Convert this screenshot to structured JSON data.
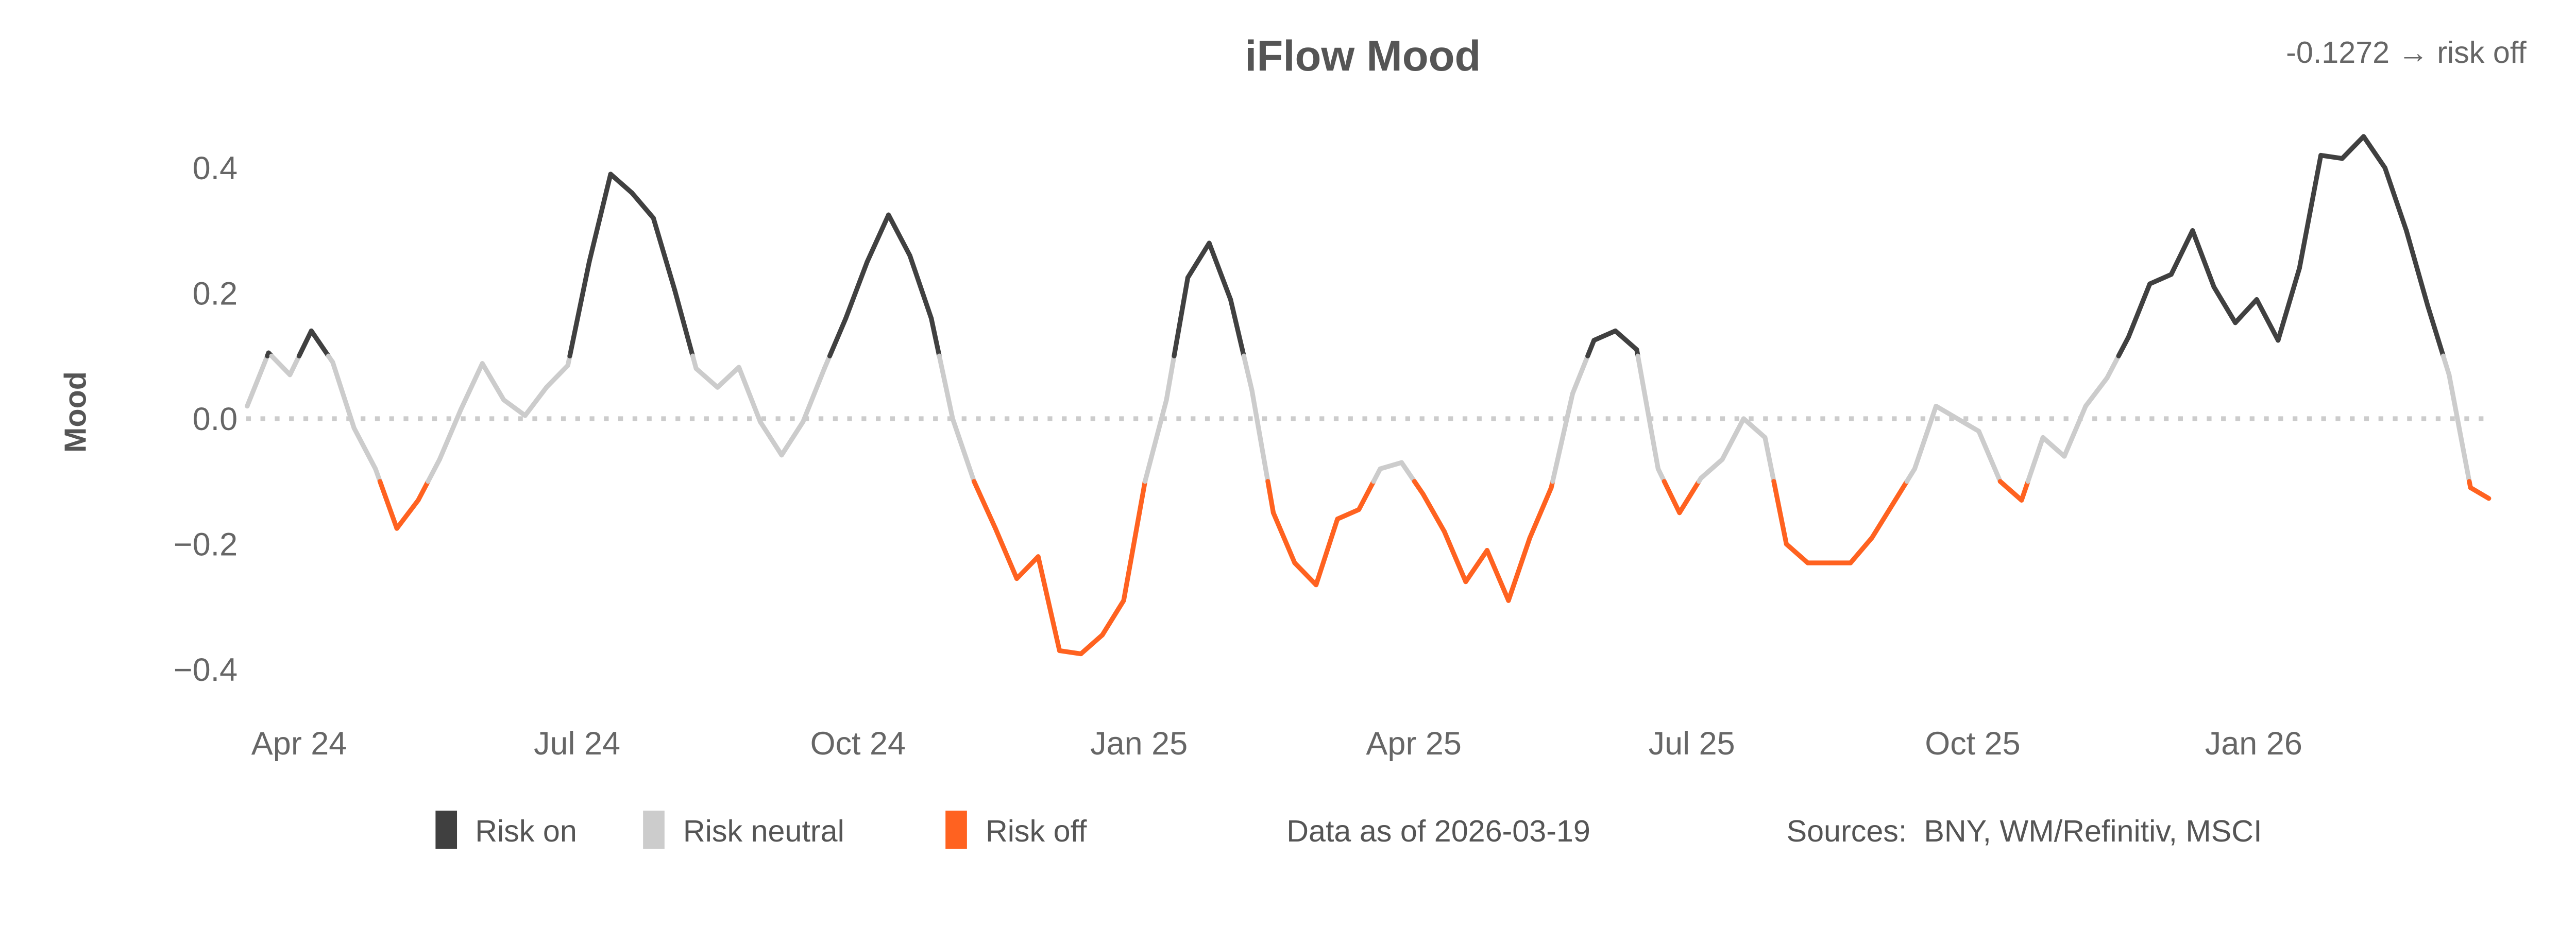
{
  "chart_data": {
    "type": "line",
    "title": "iFlow Mood",
    "annotation": "-0.1272 → risk off",
    "ylabel": "Mood",
    "xlabel": "",
    "ylim": [
      -0.45,
      0.48
    ],
    "yticks": [
      {
        "value": 0.4,
        "label": "0.4"
      },
      {
        "value": 0.2,
        "label": "0.2"
      },
      {
        "value": 0.0,
        "label": "0.0"
      },
      {
        "value": -0.2,
        "label": "−0.2"
      },
      {
        "value": -0.4,
        "label": "−0.4"
      }
    ],
    "xticks": [
      {
        "date": "2024-04-01",
        "label": "Apr 24"
      },
      {
        "date": "2024-07-01",
        "label": "Jul 24"
      },
      {
        "date": "2024-10-01",
        "label": "Oct 24"
      },
      {
        "date": "2025-01-01",
        "label": "Jan 25"
      },
      {
        "date": "2025-04-01",
        "label": "Apr 25"
      },
      {
        "date": "2025-07-01",
        "label": "Jul 25"
      },
      {
        "date": "2025-10-01",
        "label": "Oct 25"
      },
      {
        "date": "2026-01-01",
        "label": "Jan 26"
      }
    ],
    "reference_line": {
      "value": 0.0,
      "style": "dotted"
    },
    "thresholds": {
      "risk_on_above": 0.1,
      "risk_off_below": -0.1
    },
    "colors": {
      "risk_on": "#404040",
      "risk_neutral": "#cccccc",
      "risk_off": "#ff6220",
      "reference": "#cccccc"
    },
    "legend": [
      {
        "key": "risk_on",
        "label": "Risk on"
      },
      {
        "key": "risk_neutral",
        "label": "Risk neutral"
      },
      {
        "key": "risk_off",
        "label": "Risk off"
      }
    ],
    "legend_position": "bottom",
    "data_as_of": "Data as of 2026-03-19",
    "sources": "Sources:  BNY, WM/Refinitiv, MSCI",
    "grid": false,
    "x": [
      "2024-03-15",
      "2024-03-22",
      "2024-03-29",
      "2024-04-05",
      "2024-04-12",
      "2024-04-19",
      "2024-04-26",
      "2024-05-03",
      "2024-05-10",
      "2024-05-17",
      "2024-05-24",
      "2024-05-31",
      "2024-06-07",
      "2024-06-14",
      "2024-06-21",
      "2024-06-28",
      "2024-07-05",
      "2024-07-12",
      "2024-07-19",
      "2024-07-26",
      "2024-08-02",
      "2024-08-09",
      "2024-08-16",
      "2024-08-23",
      "2024-08-30",
      "2024-09-06",
      "2024-09-13",
      "2024-09-20",
      "2024-09-27",
      "2024-10-04",
      "2024-10-11",
      "2024-10-18",
      "2024-10-25",
      "2024-11-01",
      "2024-11-08",
      "2024-11-15",
      "2024-11-22",
      "2024-11-29",
      "2024-12-06",
      "2024-12-13",
      "2024-12-20",
      "2024-12-27",
      "2025-01-03",
      "2025-01-10",
      "2025-01-17",
      "2025-01-24",
      "2025-01-31",
      "2025-02-07",
      "2025-02-14",
      "2025-02-21",
      "2025-02-28",
      "2025-03-07",
      "2025-03-14",
      "2025-03-21",
      "2025-03-28",
      "2025-04-04",
      "2025-04-11",
      "2025-04-18",
      "2025-04-25",
      "2025-05-02",
      "2025-05-09",
      "2025-05-16",
      "2025-05-23",
      "2025-05-30",
      "2025-06-06",
      "2025-06-13",
      "2025-06-20",
      "2025-06-27",
      "2025-07-04",
      "2025-07-11",
      "2025-07-18",
      "2025-07-25",
      "2025-08-01",
      "2025-08-08",
      "2025-08-15",
      "2025-08-22",
      "2025-08-29",
      "2025-09-05",
      "2025-09-12",
      "2025-09-19",
      "2025-09-26",
      "2025-10-03",
      "2025-10-10",
      "2025-10-17",
      "2025-10-24",
      "2025-10-31",
      "2025-11-07",
      "2025-11-14",
      "2025-11-21",
      "2025-11-28",
      "2025-12-05",
      "2025-12-12",
      "2025-12-19",
      "2025-12-26",
      "2026-01-02",
      "2026-01-09",
      "2026-01-16",
      "2026-01-23",
      "2026-01-30",
      "2026-02-06",
      "2026-02-13",
      "2026-02-20",
      "2026-02-27",
      "2026-03-06",
      "2026-03-13",
      "2026-03-19"
    ],
    "y": [
      0.02,
      0.105,
      0.07,
      0.14,
      0.09,
      -0.015,
      -0.08,
      -0.175,
      -0.13,
      -0.065,
      0.015,
      0.088,
      0.03,
      0.005,
      0.05,
      0.085,
      0.25,
      0.39,
      0.36,
      0.32,
      0.205,
      0.08,
      0.05,
      0.082,
      -0.005,
      -0.058,
      -0.005,
      0.08,
      0.16,
      0.25,
      0.325,
      0.26,
      0.16,
      0.0,
      -0.1,
      -0.175,
      -0.255,
      -0.22,
      -0.37,
      -0.375,
      -0.345,
      -0.29,
      -0.1,
      0.03,
      0.225,
      0.28,
      0.19,
      0.045,
      -0.15,
      -0.23,
      -0.265,
      -0.16,
      -0.145,
      -0.08,
      -0.07,
      -0.12,
      -0.18,
      -0.26,
      -0.21,
      -0.29,
      -0.19,
      -0.11,
      0.04,
      0.125,
      0.14,
      0.11,
      -0.08,
      -0.15,
      -0.095,
      -0.065,
      0.0,
      -0.03,
      -0.2,
      -0.23,
      -0.23,
      -0.23,
      -0.19,
      -0.135,
      -0.08,
      0.02,
      0.0,
      -0.02,
      -0.1,
      -0.13,
      -0.03,
      -0.06,
      0.02,
      0.065,
      0.13,
      0.215,
      0.23,
      0.3,
      0.21,
      0.153,
      0.19,
      0.125,
      0.24,
      0.42,
      0.415,
      0.45,
      0.4,
      0.3,
      0.18,
      0.07,
      -0.11,
      -0.1272
    ]
  }
}
